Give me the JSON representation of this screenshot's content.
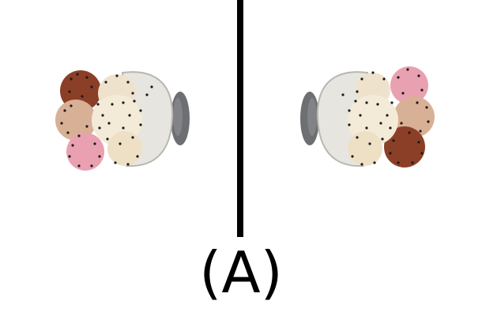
{
  "caption": "(A)",
  "colors": {
    "background": "#ffffff",
    "divider": "#000000",
    "cup": "#e7e5e0",
    "cup_shadow": "#b9b6af",
    "stand": "#6d6f72",
    "scoop_vanilla": "#efe2cc",
    "scoop_peach": "#d8b096",
    "scoop_chocolate": "#8b3f27",
    "scoop_strawberry": "#e9a1b2",
    "sprinkles": "#1a1a1a"
  },
  "panels": [
    {
      "name": "left-view",
      "orientation": "left"
    },
    {
      "name": "right-view",
      "orientation": "right"
    }
  ]
}
